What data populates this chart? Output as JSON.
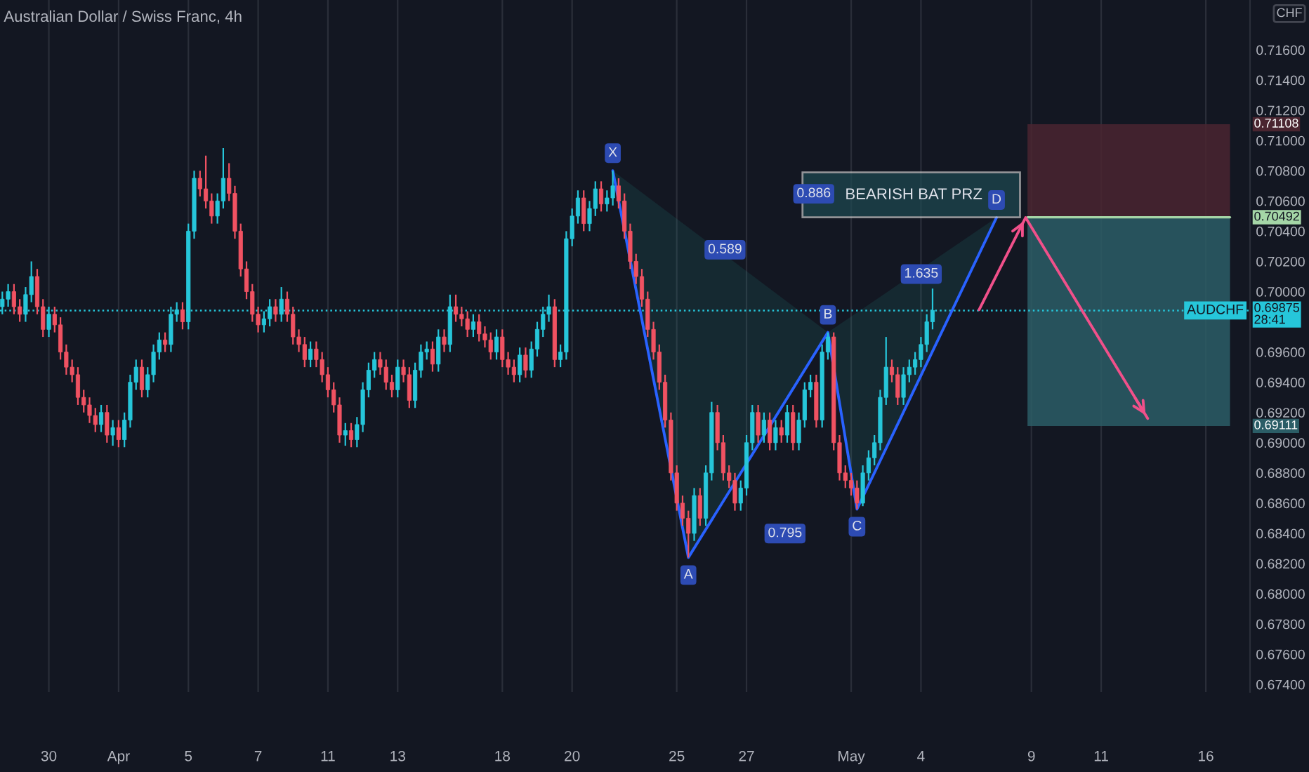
{
  "chart_data": {
    "type": "candlestick",
    "title": "Australian Dollar / Swiss Franc, 4h",
    "categories": [
      null,
      null,
      null,
      null,
      null,
      null,
      null,
      null,
      "30",
      null,
      null,
      null,
      null,
      null,
      null,
      null,
      null,
      null,
      null,
      null,
      "Apr",
      null,
      null,
      null,
      null,
      null,
      null,
      null,
      null,
      null,
      null,
      null,
      "5",
      null,
      null,
      null,
      null,
      null,
      null,
      null,
      null,
      null,
      null,
      null,
      "7",
      null,
      null,
      null,
      null,
      null,
      null,
      null,
      null,
      null,
      null,
      null,
      "11",
      null,
      null,
      null,
      null,
      null,
      null,
      null,
      null,
      null,
      null,
      null,
      "13",
      null,
      null,
      null,
      null,
      null,
      null,
      null,
      null,
      null,
      null,
      null,
      null,
      null,
      null,
      null,
      null,
      null,
      "18",
      null,
      null,
      null,
      null,
      null,
      null,
      null,
      null,
      null,
      null,
      null,
      "20",
      null,
      null,
      null,
      null,
      null,
      null,
      null,
      null,
      null,
      null,
      null,
      null,
      null,
      null,
      null,
      null,
      null,
      "25",
      null,
      null,
      null,
      null,
      null,
      null,
      null,
      null,
      null,
      null,
      null,
      "27",
      null,
      null,
      null,
      null,
      null,
      null,
      null,
      null,
      null,
      null,
      null,
      null,
      null,
      null,
      null,
      null,
      null,
      "May",
      null,
      null,
      null,
      null,
      null,
      null,
      null,
      null,
      null,
      null,
      null,
      "4",
      null,
      null,
      null,
      null,
      null,
      null,
      null,
      null,
      null,
      null,
      null,
      null,
      null,
      null,
      null,
      null,
      null,
      null,
      "9",
      null,
      null,
      null,
      null,
      null,
      null,
      null,
      null,
      null,
      null,
      null,
      "11",
      null,
      null,
      null,
      null,
      null,
      null,
      null,
      null,
      null,
      null,
      null,
      null,
      null,
      null,
      null,
      null,
      null,
      "16",
      null,
      null,
      null,
      null,
      null,
      null,
      null
    ],
    "ohlc": [
      [
        0.699,
        0.7,
        0.6985,
        0.6995
      ],
      [
        0.6995,
        0.7005,
        0.699,
        0.7
      ],
      [
        0.7,
        0.7005,
        0.6985,
        0.699
      ],
      [
        0.699,
        0.6995,
        0.698,
        0.6985
      ],
      [
        0.6985,
        0.7003,
        0.698,
        0.6998
      ],
      [
        0.6998,
        0.702,
        0.6993,
        0.701
      ],
      [
        0.701,
        0.7015,
        0.6985,
        0.699
      ],
      [
        0.699,
        0.6995,
        0.697,
        0.6975
      ],
      [
        0.6975,
        0.699,
        0.697,
        0.6985
      ],
      [
        0.6985,
        0.699,
        0.6973,
        0.6978
      ],
      [
        0.6978,
        0.6983,
        0.6955,
        0.696
      ],
      [
        0.696,
        0.6965,
        0.6945,
        0.695
      ],
      [
        0.695,
        0.6955,
        0.694,
        0.6945
      ],
      [
        0.6945,
        0.695,
        0.6925,
        0.693
      ],
      [
        0.693,
        0.6935,
        0.692,
        0.6925
      ],
      [
        0.6925,
        0.693,
        0.6913,
        0.6918
      ],
      [
        0.6918,
        0.6923,
        0.6907,
        0.6912
      ],
      [
        0.6912,
        0.6925,
        0.6907,
        0.692
      ],
      [
        0.692,
        0.6925,
        0.69,
        0.6905
      ],
      [
        0.6905,
        0.6915,
        0.6898,
        0.691
      ],
      [
        0.691,
        0.6915,
        0.6897,
        0.6902
      ],
      [
        0.6902,
        0.692,
        0.6897,
        0.6915
      ],
      [
        0.6915,
        0.6945,
        0.691,
        0.694
      ],
      [
        0.694,
        0.6955,
        0.6935,
        0.695
      ],
      [
        0.695,
        0.6955,
        0.693,
        0.6935
      ],
      [
        0.6935,
        0.695,
        0.693,
        0.6945
      ],
      [
        0.6945,
        0.6965,
        0.694,
        0.696
      ],
      [
        0.696,
        0.6973,
        0.6955,
        0.6968
      ],
      [
        0.6968,
        0.6973,
        0.696,
        0.6965
      ],
      [
        0.6965,
        0.699,
        0.696,
        0.6985
      ],
      [
        0.6985,
        0.6993,
        0.698,
        0.6988
      ],
      [
        0.6988,
        0.6993,
        0.6975,
        0.698
      ],
      [
        0.698,
        0.7045,
        0.6975,
        0.704
      ],
      [
        0.704,
        0.708,
        0.7035,
        0.7075
      ],
      [
        0.7075,
        0.708,
        0.7063,
        0.7068
      ],
      [
        0.7068,
        0.709,
        0.7055,
        0.706
      ],
      [
        0.706,
        0.7065,
        0.7045,
        0.705
      ],
      [
        0.705,
        0.7065,
        0.7045,
        0.706
      ],
      [
        0.706,
        0.7095,
        0.7055,
        0.7075
      ],
      [
        0.7075,
        0.7085,
        0.706,
        0.7065
      ],
      [
        0.7065,
        0.707,
        0.7035,
        0.704
      ],
      [
        0.704,
        0.7045,
        0.701,
        0.7015
      ],
      [
        0.7015,
        0.702,
        0.6995,
        0.7
      ],
      [
        0.7,
        0.7005,
        0.698,
        0.6985
      ],
      [
        0.6985,
        0.699,
        0.6973,
        0.6978
      ],
      [
        0.6978,
        0.6987,
        0.6973,
        0.6982
      ],
      [
        0.6982,
        0.6995,
        0.6977,
        0.699
      ],
      [
        0.699,
        0.6995,
        0.698,
        0.6985
      ],
      [
        0.6985,
        0.7003,
        0.698,
        0.6995
      ],
      [
        0.6995,
        0.7,
        0.698,
        0.6985
      ],
      [
        0.6985,
        0.699,
        0.6965,
        0.697
      ],
      [
        0.697,
        0.6975,
        0.696,
        0.6965
      ],
      [
        0.6965,
        0.697,
        0.695,
        0.6955
      ],
      [
        0.6955,
        0.6967,
        0.695,
        0.6962
      ],
      [
        0.6962,
        0.6967,
        0.695,
        0.6955
      ],
      [
        0.6955,
        0.696,
        0.694,
        0.6945
      ],
      [
        0.6945,
        0.695,
        0.693,
        0.6935
      ],
      [
        0.6935,
        0.694,
        0.692,
        0.6925
      ],
      [
        0.6925,
        0.693,
        0.69,
        0.6905
      ],
      [
        0.6905,
        0.6913,
        0.6898,
        0.6908
      ],
      [
        0.6908,
        0.6913,
        0.6897,
        0.6902
      ],
      [
        0.6902,
        0.6917,
        0.6897,
        0.6912
      ],
      [
        0.6912,
        0.694,
        0.6907,
        0.6935
      ],
      [
        0.6935,
        0.6953,
        0.693,
        0.6948
      ],
      [
        0.6948,
        0.696,
        0.6943,
        0.6955
      ],
      [
        0.6955,
        0.696,
        0.6945,
        0.695
      ],
      [
        0.695,
        0.6955,
        0.6935,
        0.694
      ],
      [
        0.694,
        0.6945,
        0.693,
        0.6935
      ],
      [
        0.6935,
        0.6955,
        0.693,
        0.695
      ],
      [
        0.695,
        0.6955,
        0.694,
        0.6945
      ],
      [
        0.6945,
        0.695,
        0.6923,
        0.6928
      ],
      [
        0.6928,
        0.6953,
        0.6923,
        0.6948
      ],
      [
        0.6948,
        0.6965,
        0.6943,
        0.696
      ],
      [
        0.696,
        0.6967,
        0.6955,
        0.6962
      ],
      [
        0.6962,
        0.6967,
        0.6947,
        0.6952
      ],
      [
        0.6952,
        0.6975,
        0.6947,
        0.697
      ],
      [
        0.697,
        0.6975,
        0.696,
        0.6965
      ],
      [
        0.6965,
        0.6998,
        0.696,
        0.699
      ],
      [
        0.699,
        0.6998,
        0.698,
        0.6985
      ],
      [
        0.6985,
        0.699,
        0.6977,
        0.6982
      ],
      [
        0.6982,
        0.6987,
        0.697,
        0.6975
      ],
      [
        0.6975,
        0.6985,
        0.697,
        0.698
      ],
      [
        0.698,
        0.6985,
        0.6967,
        0.6972
      ],
      [
        0.6972,
        0.6977,
        0.6963,
        0.6968
      ],
      [
        0.6968,
        0.6973,
        0.6955,
        0.696
      ],
      [
        0.696,
        0.6975,
        0.6955,
        0.697
      ],
      [
        0.697,
        0.6975,
        0.695,
        0.6955
      ],
      [
        0.6955,
        0.696,
        0.6945,
        0.695
      ],
      [
        0.695,
        0.6955,
        0.694,
        0.6945
      ],
      [
        0.6945,
        0.6963,
        0.694,
        0.6958
      ],
      [
        0.6958,
        0.6963,
        0.6943,
        0.6948
      ],
      [
        0.6948,
        0.6967,
        0.6943,
        0.6962
      ],
      [
        0.6962,
        0.698,
        0.6957,
        0.6975
      ],
      [
        0.6975,
        0.699,
        0.697,
        0.6985
      ],
      [
        0.6985,
        0.6998,
        0.698,
        0.699
      ],
      [
        0.699,
        0.6995,
        0.695,
        0.6955
      ],
      [
        0.6955,
        0.6965,
        0.695,
        0.696
      ],
      [
        0.696,
        0.704,
        0.6955,
        0.7035
      ],
      [
        0.7035,
        0.7055,
        0.703,
        0.705
      ],
      [
        0.705,
        0.7067,
        0.7045,
        0.7062
      ],
      [
        0.7062,
        0.7067,
        0.704,
        0.7045
      ],
      [
        0.7045,
        0.706,
        0.704,
        0.7055
      ],
      [
        0.7055,
        0.7073,
        0.705,
        0.7068
      ],
      [
        0.7068,
        0.7073,
        0.7053,
        0.7058
      ],
      [
        0.7058,
        0.7067,
        0.7053,
        0.7062
      ],
      [
        0.7062,
        0.708,
        0.7057,
        0.707
      ],
      [
        0.707,
        0.7075,
        0.7055,
        0.706
      ],
      [
        0.706,
        0.7065,
        0.7035,
        0.704
      ],
      [
        0.704,
        0.7045,
        0.7015,
        0.702
      ],
      [
        0.702,
        0.7025,
        0.7005,
        0.701
      ],
      [
        0.701,
        0.7015,
        0.699,
        0.6995
      ],
      [
        0.6995,
        0.7,
        0.697,
        0.6975
      ],
      [
        0.6975,
        0.698,
        0.6955,
        0.696
      ],
      [
        0.696,
        0.6965,
        0.6935,
        0.694
      ],
      [
        0.694,
        0.6945,
        0.691,
        0.6915
      ],
      [
        0.6915,
        0.692,
        0.6875,
        0.688
      ],
      [
        0.688,
        0.6885,
        0.6855,
        0.686
      ],
      [
        0.686,
        0.6865,
        0.6845,
        0.685
      ],
      [
        0.685,
        0.6855,
        0.6824,
        0.684
      ],
      [
        0.684,
        0.687,
        0.6835,
        0.6865
      ],
      [
        0.6865,
        0.687,
        0.6845,
        0.685
      ],
      [
        0.685,
        0.6885,
        0.6845,
        0.688
      ],
      [
        0.688,
        0.6927,
        0.6875,
        0.692
      ],
      [
        0.692,
        0.6925,
        0.6895,
        0.69
      ],
      [
        0.69,
        0.6905,
        0.6875,
        0.688
      ],
      [
        0.688,
        0.6885,
        0.687,
        0.6875
      ],
      [
        0.6875,
        0.688,
        0.6855,
        0.686
      ],
      [
        0.686,
        0.6875,
        0.6855,
        0.687
      ],
      [
        0.687,
        0.6905,
        0.6865,
        0.69
      ],
      [
        0.69,
        0.6925,
        0.6895,
        0.692
      ],
      [
        0.692,
        0.6925,
        0.69,
        0.6905
      ],
      [
        0.6905,
        0.692,
        0.69,
        0.6915
      ],
      [
        0.6915,
        0.692,
        0.6895,
        0.69
      ],
      [
        0.69,
        0.6915,
        0.6895,
        0.691
      ],
      [
        0.691,
        0.6915,
        0.69,
        0.6905
      ],
      [
        0.6905,
        0.6925,
        0.69,
        0.692
      ],
      [
        0.692,
        0.6925,
        0.6895,
        0.69
      ],
      [
        0.69,
        0.692,
        0.6895,
        0.6915
      ],
      [
        0.6915,
        0.694,
        0.691,
        0.6935
      ],
      [
        0.6935,
        0.6945,
        0.693,
        0.694
      ],
      [
        0.694,
        0.6945,
        0.691,
        0.6915
      ],
      [
        0.6915,
        0.6965,
        0.691,
        0.696
      ],
      [
        0.696,
        0.6973,
        0.6955,
        0.697
      ],
      [
        0.697,
        0.6973,
        0.6895,
        0.69
      ],
      [
        0.69,
        0.6905,
        0.6875,
        0.688
      ],
      [
        0.688,
        0.6885,
        0.687,
        0.6875
      ],
      [
        0.6875,
        0.688,
        0.6865,
        0.687
      ],
      [
        0.687,
        0.6875,
        0.6856,
        0.686
      ],
      [
        0.686,
        0.6885,
        0.6858,
        0.688
      ],
      [
        0.688,
        0.6895,
        0.6875,
        0.689
      ],
      [
        0.689,
        0.6905,
        0.6885,
        0.69
      ],
      [
        0.69,
        0.6935,
        0.6895,
        0.693
      ],
      [
        0.693,
        0.697,
        0.6925,
        0.695
      ],
      [
        0.695,
        0.6955,
        0.694,
        0.6945
      ],
      [
        0.6945,
        0.695,
        0.6925,
        0.693
      ],
      [
        0.693,
        0.695,
        0.6925,
        0.6945
      ],
      [
        0.6945,
        0.6955,
        0.694,
        0.695
      ],
      [
        0.695,
        0.696,
        0.6945,
        0.6955
      ],
      [
        0.6955,
        0.697,
        0.695,
        0.6965
      ],
      [
        0.6965,
        0.6985,
        0.696,
        0.698
      ],
      [
        0.698,
        0.7002,
        0.6975,
        0.69875
      ],
      null,
      null,
      null,
      null,
      null,
      null,
      null,
      null,
      null,
      null,
      null,
      null,
      null,
      null,
      null,
      null,
      null,
      null,
      null,
      null,
      null,
      null,
      null,
      null,
      null,
      null,
      null,
      null,
      null,
      null,
      null,
      null,
      null,
      null,
      null,
      null,
      null,
      null,
      null,
      null,
      null,
      null,
      null,
      null,
      null,
      null,
      null,
      null,
      null,
      null,
      null,
      null,
      null,
      null
    ],
    "series": [
      {
        "type": "line",
        "color": "#2962ff",
        "values": [
          null,
          null,
          null,
          null,
          null,
          null,
          null,
          null,
          null,
          null,
          null,
          null,
          null,
          null,
          null,
          null,
          null,
          null,
          null,
          null,
          null,
          null,
          null,
          null,
          null,
          null,
          null,
          null,
          null,
          null,
          null,
          null,
          null,
          null,
          null,
          null,
          null,
          null,
          null,
          null,
          null,
          null,
          null,
          null,
          null,
          null,
          null,
          null,
          null,
          null,
          null,
          null,
          null,
          null,
          null,
          null,
          null,
          null,
          null,
          null,
          null,
          null,
          null,
          null,
          null,
          null,
          null,
          null,
          null,
          null,
          null,
          null,
          null,
          null,
          null,
          null,
          null,
          null,
          null,
          null,
          null,
          null,
          null,
          null,
          null,
          null,
          null,
          null,
          null,
          null,
          null,
          null,
          null,
          null,
          null,
          null,
          null,
          null,
          null,
          null,
          null,
          null,
          null,
          null,
          null,
          0.708,
          null,
          null,
          null,
          null,
          null,
          null,
          null,
          null,
          null,
          null,
          null,
          null,
          0.6824,
          null,
          null,
          null,
          null,
          null,
          null,
          null,
          null,
          null,
          null,
          null,
          null,
          null,
          null,
          null,
          null,
          null,
          null,
          null,
          null,
          null,
          null,
          null,
          0.6973,
          null,
          null,
          null,
          null,
          0.6856,
          null,
          null,
          null,
          null,
          null,
          null,
          null,
          null,
          null,
          null,
          null,
          null,
          null,
          null,
          null,
          null,
          null,
          null,
          null,
          null,
          null,
          null,
          null,
          0.7049,
          null,
          null,
          null,
          null,
          null,
          null,
          null,
          null,
          null,
          null,
          null,
          null,
          null,
          null,
          null,
          null,
          null,
          null,
          null,
          null,
          null,
          null,
          null,
          null,
          null,
          null,
          null,
          null,
          null,
          null,
          null,
          null,
          null,
          null,
          null,
          null,
          null,
          null,
          null,
          null,
          null,
          null,
          null
        ]
      },
      {
        "type": "line",
        "color": "#f0508a",
        "values": [
          null,
          null,
          null,
          null,
          null,
          null,
          null,
          null,
          null,
          null,
          null,
          null,
          null,
          null,
          null,
          null,
          null,
          null,
          null,
          null,
          null,
          null,
          null,
          null,
          null,
          null,
          null,
          null,
          null,
          null,
          null,
          null,
          null,
          null,
          null,
          null,
          null,
          null,
          null,
          null,
          null,
          null,
          null,
          null,
          null,
          null,
          null,
          null,
          null,
          null,
          null,
          null,
          null,
          null,
          null,
          null,
          null,
          null,
          null,
          null,
          null,
          null,
          null,
          null,
          null,
          null,
          null,
          null,
          null,
          null,
          null,
          null,
          null,
          null,
          null,
          null,
          null,
          null,
          null,
          null,
          null,
          null,
          null,
          null,
          null,
          null,
          null,
          null,
          null,
          null,
          null,
          null,
          null,
          null,
          null,
          null,
          null,
          null,
          null,
          null,
          null,
          null,
          null,
          null,
          null,
          null,
          null,
          null,
          null,
          null,
          null,
          null,
          null,
          null,
          null,
          null,
          null,
          null,
          null,
          null,
          null,
          null,
          null,
          null,
          null,
          null,
          null,
          null,
          null,
          null,
          null,
          null,
          null,
          null,
          null,
          null,
          null,
          null,
          null,
          null,
          null,
          null,
          null,
          null,
          null,
          null,
          null,
          null,
          null,
          null,
          null,
          null,
          null,
          null,
          null,
          null,
          null,
          null,
          null,
          null,
          null,
          null,
          null,
          null,
          null,
          null,
          null,
          null,
          0.6988,
          null,
          null,
          null,
          null,
          null,
          null,
          null,
          0.7049,
          null,
          null,
          null,
          null,
          null,
          null,
          null,
          null,
          null,
          null,
          null,
          null,
          null,
          null,
          null,
          null,
          null,
          null,
          null,
          null,
          0.6916,
          null,
          null,
          null,
          null,
          null,
          null,
          null,
          null,
          null,
          null,
          null,
          null,
          null,
          null,
          null,
          null,
          null
        ]
      }
    ],
    "ylim": [
      0.6735,
      0.7193
    ],
    "yticks": [
      {
        "value": 0.674,
        "label": "0.67400"
      },
      {
        "value": 0.676,
        "label": "0.67600"
      },
      {
        "value": 0.678,
        "label": "0.67800"
      },
      {
        "value": 0.68,
        "label": "0.68000"
      },
      {
        "value": 0.682,
        "label": "0.68200"
      },
      {
        "value": 0.684,
        "label": "0.68400"
      },
      {
        "value": 0.686,
        "label": "0.68600"
      },
      {
        "value": 0.688,
        "label": "0.68800"
      },
      {
        "value": 0.69,
        "label": "0.69000"
      },
      {
        "value": 0.692,
        "label": "0.69200"
      },
      {
        "value": 0.694,
        "label": "0.69400"
      },
      {
        "value": 0.696,
        "label": "0.69600"
      },
      {
        "value": 0.7,
        "label": "0.70000"
      },
      {
        "value": 0.702,
        "label": "0.70200"
      },
      {
        "value": 0.704,
        "label": "0.70400"
      },
      {
        "value": 0.706,
        "label": "0.70600"
      },
      {
        "value": 0.708,
        "label": "0.70800"
      },
      {
        "value": 0.71,
        "label": "0.71000"
      },
      {
        "value": 0.712,
        "label": "0.71200"
      },
      {
        "value": 0.714,
        "label": "0.71400"
      },
      {
        "value": 0.716,
        "label": "0.71600"
      }
    ],
    "grid": "x",
    "ref_lines": [
      {
        "axis": "y",
        "value": 0.69875,
        "label": "AUDCHF",
        "color": "#26c6da",
        "line_style": "dotted"
      },
      {
        "axis": "y",
        "value": 0.70492,
        "label": "0.70492",
        "color": "#a5d6a7",
        "line_style": "solid"
      }
    ],
    "bands": [
      {
        "axis": "y",
        "from": 0.69111,
        "to": 0.70492,
        "label": "0.69111",
        "color": "#2b5d66"
      },
      {
        "axis": "y",
        "from": 0.70492,
        "to": 0.71108,
        "label": "0.71108",
        "color": "#4a2530"
      }
    ],
    "annotations": [
      {
        "text": "X",
        "y": 0.708
      },
      {
        "text": "A",
        "y": 0.6824
      },
      {
        "text": "B",
        "y": 0.6973
      },
      {
        "text": "C",
        "y": 0.6856
      },
      {
        "text": "D",
        "y": 0.7049
      },
      "0.589",
      "0.795",
      "1.635",
      "0.886",
      "BEARISH BAT PRZ",
      "CHF",
      "0.69875\n28:41"
    ]
  }
}
